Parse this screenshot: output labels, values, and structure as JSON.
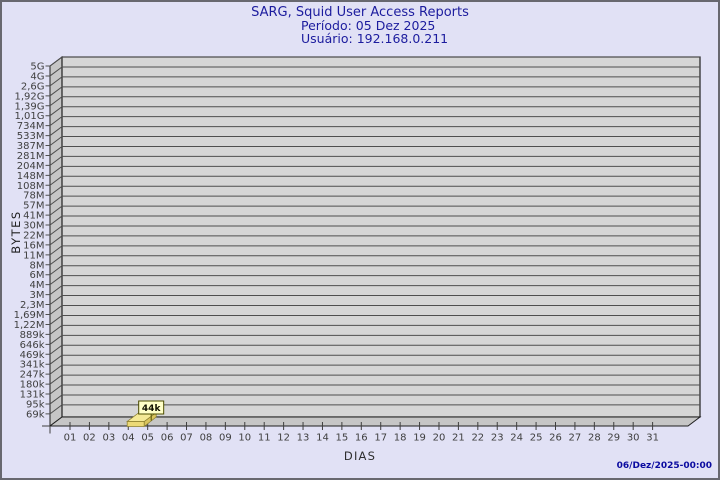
{
  "chart_data": {
    "type": "bar",
    "style": "3d-bar-report",
    "title": "SARG, Squid User Access Reports",
    "subtitle_period": "Período: 05 Dez 2025",
    "subtitle_user": "Usuário: 192.168.0.211",
    "xlabel": "DIAS",
    "ylabel": "BYTES",
    "x_ticks": [
      "01",
      "02",
      "03",
      "04",
      "05",
      "06",
      "07",
      "08",
      "09",
      "10",
      "11",
      "12",
      "13",
      "14",
      "15",
      "16",
      "17",
      "18",
      "19",
      "20",
      "21",
      "22",
      "23",
      "24",
      "25",
      "26",
      "27",
      "28",
      "29",
      "30",
      "31"
    ],
    "y_ticks_top_to_bottom": [
      "5G",
      "4G",
      "2,6G",
      "1,92G",
      "1,39G",
      "1,01G",
      "734M",
      "533M",
      "387M",
      "281M",
      "204M",
      "148M",
      "108M",
      "78M",
      "57M",
      "41M",
      "30M",
      "22M",
      "16M",
      "11M",
      "8M",
      "6M",
      "4M",
      "3M",
      "2,3M",
      "1,69M",
      "1,22M",
      "889k",
      "646k",
      "469k",
      "341k",
      "247k",
      "180k",
      "131k",
      "95k",
      "69k"
    ],
    "y_axis": {
      "scale": "log-like",
      "min_label": "69k",
      "max_label": "5G",
      "grid": "horizontal"
    },
    "bars": [
      {
        "day": "05",
        "value_label": "44k"
      }
    ],
    "footer_timestamp": "06/Dez/2025-00:00",
    "colors": {
      "background": "#e1e1f5",
      "frame_border": "#68686f",
      "plot_back_wall": "#d6d6d6",
      "plot_side_wall": "#c6c6c6",
      "plot_floor": "#c6c6c6",
      "gridline": "#4f4f4f",
      "plot_edge": "#1f1f1f",
      "bar_top": "#f4e996",
      "bar_front": "#ecd977",
      "bar_side": "#d9c45e",
      "bar_edge": "#8a7d2e",
      "value_flag_bg": "#ffffc8",
      "value_flag_border": "#4d4d00",
      "title_text": "#1c1c9e",
      "tick_text": "#3f3f3f",
      "footer_text": "#0a0aa0"
    }
  }
}
